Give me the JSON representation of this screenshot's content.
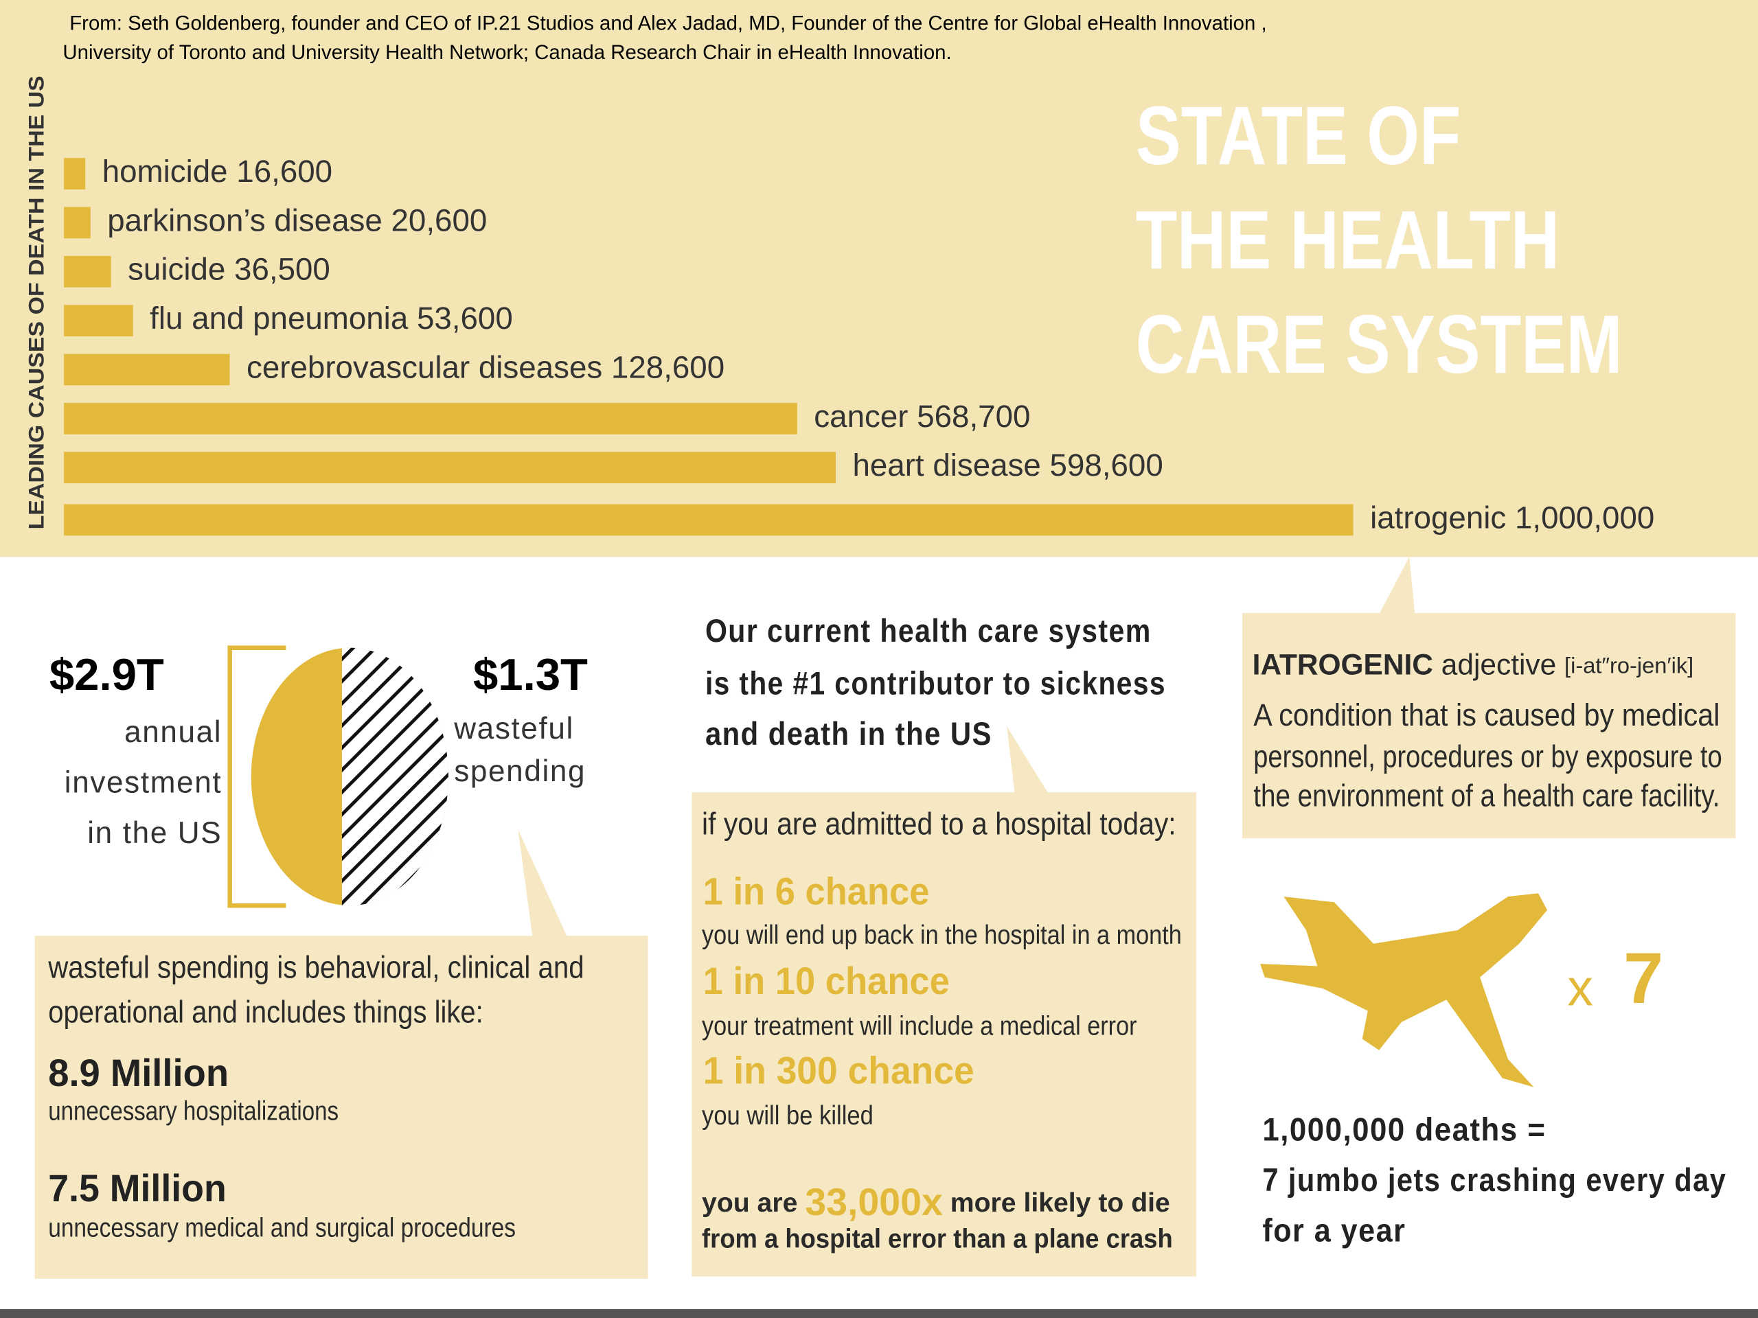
{
  "source": [
    "From: Seth Goldenberg, founder and CEO of IP.21 Studios and Alex Jadad, MD, Founder of the Centre for Global eHealth Innovation ,",
    "University of Toronto and University Health Network;  Canada Research Chair in eHealth Innovation."
  ],
  "chart_data": {
    "type": "bar",
    "orientation": "horizontal",
    "ylabel": "LEADING CAUSES OF DEATH IN THE US",
    "categories": [
      "homicide",
      "parkinson’s disease",
      "suicide",
      "flu and pneumonia",
      "cerebrovascular diseases",
      "cancer",
      "heart disease",
      "iatrogenic"
    ],
    "values": [
      16600,
      20600,
      36500,
      53600,
      128600,
      568700,
      598600,
      1000000
    ],
    "value_labels": [
      "16,600",
      "20,600",
      "36,500",
      "53,600",
      "128,600",
      "568,700",
      "598,600",
      "1,000,000"
    ],
    "color": "#e2b93b"
  },
  "title_lines": [
    "STATE OF",
    "THE HEALTH",
    "CARE SYSTEM"
  ],
  "spending": {
    "total": "$2.9T",
    "total_label": [
      "annual",
      "investment",
      "in the US"
    ],
    "waste": "$1.3T",
    "waste_label": [
      "wasteful",
      "spending"
    ],
    "intro": [
      "wasteful spending is behavioral, clinical and",
      "operational and includes things like:"
    ],
    "items": [
      {
        "amount": "8.9 Million",
        "text": "unnecessary hospitalizations"
      },
      {
        "amount": "7.5 Million",
        "text": "unnecessary medical and surgical procedures"
      }
    ]
  },
  "hospital": {
    "statement": [
      "Our current health care system",
      "is the #1 contributor to sickness",
      "and death in the US"
    ],
    "intro": "if you are admitted to a hospital today:",
    "chances": [
      {
        "headline": "1 in 6 chance",
        "text": "you will end up back in the hospital in a month"
      },
      {
        "headline": "1 in 10 chance",
        "text": "your treatment will include a medical error"
      },
      {
        "headline": "1 in 300 chance",
        "text": "you will be killed"
      }
    ],
    "comparison": {
      "before": "you are",
      "highlight": "33,000x",
      "after": "more likely to die",
      "line2": "from a hospital error than a plane crash"
    }
  },
  "definition": {
    "term": "IATROGENIC",
    "pos": "adjective",
    "pronunciation": "[i-at″ro-jen′ik]",
    "lines": [
      "A condition that is caused by medical",
      "personnel, procedures or by exposure to",
      "the environment of a health care facility."
    ]
  },
  "jets": {
    "x": "x",
    "multiplier": "7",
    "lines": [
      "1,000,000 deaths =",
      "7 jumbo jets crashing every day",
      "for a year"
    ]
  }
}
